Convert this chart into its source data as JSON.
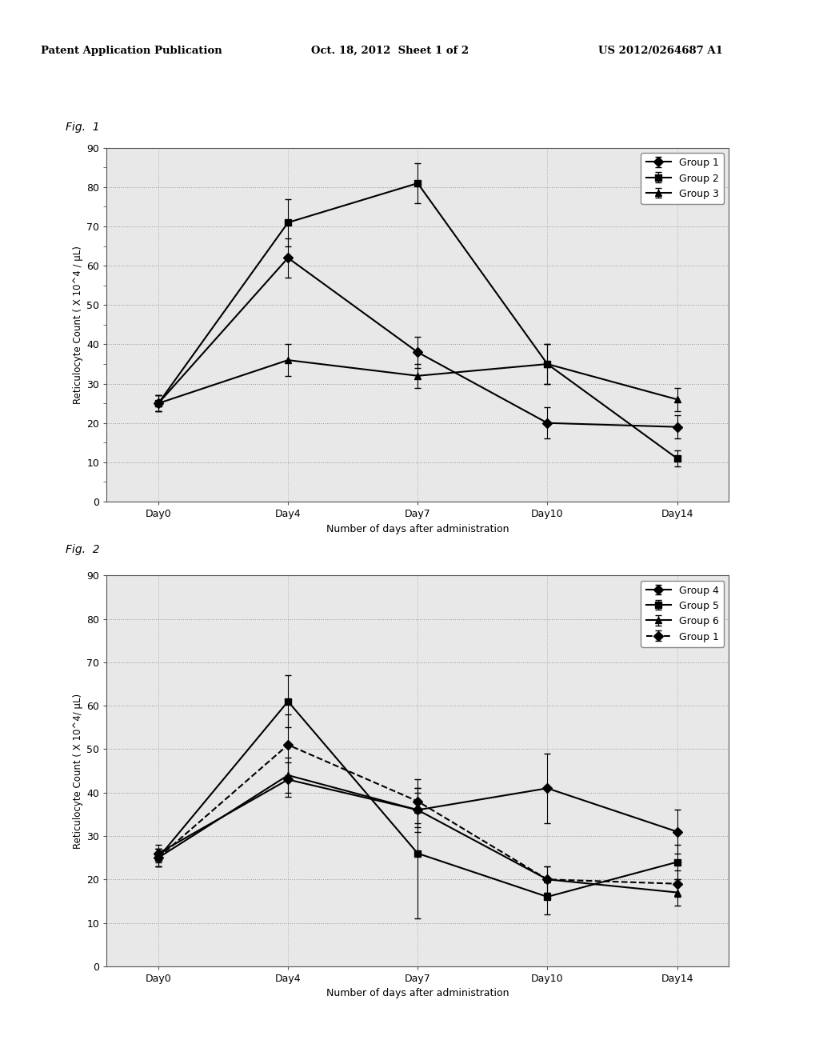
{
  "fig1_title": "Fig.  1",
  "fig2_title": "Fig.  2",
  "header_left": "Patent Application Publication",
  "header_mid": "Oct. 18, 2012  Sheet 1 of 2",
  "header_right": "US 2012/0264687 A1",
  "x_labels": [
    "Day0",
    "Day4",
    "Day7",
    "Day10",
    "Day14"
  ],
  "ylabel1": "Reticulocyte Count ( X 10^4 / μL)",
  "ylabel2": "Reticulocyte Count ( X 10^4/ μL)",
  "xlabel": "Number of days after administration",
  "ylim": [
    0,
    90
  ],
  "yticks": [
    0,
    10,
    20,
    30,
    40,
    50,
    60,
    70,
    80,
    90
  ],
  "fig1_groups": [
    {
      "name": "Group 1",
      "values": [
        25,
        62,
        38,
        20,
        19
      ],
      "errors": [
        2,
        5,
        4,
        4,
        3
      ],
      "marker": "D",
      "linestyle": "-",
      "color": "#000000",
      "linewidth": 1.5,
      "markersize": 6
    },
    {
      "name": "Group 2",
      "values": [
        25,
        71,
        81,
        35,
        11
      ],
      "errors": [
        2,
        6,
        5,
        5,
        2
      ],
      "marker": "s",
      "linestyle": "-",
      "color": "#000000",
      "linewidth": 1.5,
      "markersize": 6
    },
    {
      "name": "Group 3",
      "values": [
        25,
        36,
        32,
        35,
        26
      ],
      "errors": [
        2,
        4,
        3,
        5,
        3
      ],
      "marker": "^",
      "linestyle": "-",
      "color": "#000000",
      "linewidth": 1.5,
      "markersize": 6
    }
  ],
  "fig2_groups": [
    {
      "name": "Group 4",
      "values": [
        26,
        43,
        36,
        41,
        31
      ],
      "errors": [
        2,
        4,
        5,
        8,
        5
      ],
      "marker": "D",
      "linestyle": "-",
      "color": "#000000",
      "linewidth": 1.5,
      "markersize": 6
    },
    {
      "name": "Group 5",
      "values": [
        25,
        61,
        26,
        16,
        24
      ],
      "errors": [
        2,
        6,
        15,
        4,
        4
      ],
      "marker": "s",
      "linestyle": "-",
      "color": "#000000",
      "linewidth": 1.5,
      "markersize": 6
    },
    {
      "name": "Group 6",
      "values": [
        25,
        44,
        36,
        20,
        17
      ],
      "errors": [
        2,
        4,
        4,
        3,
        3
      ],
      "marker": "^",
      "linestyle": "-",
      "color": "#000000",
      "linewidth": 1.5,
      "markersize": 6
    },
    {
      "name": "Group 1",
      "values": [
        25,
        51,
        38,
        20,
        19
      ],
      "errors": [
        2,
        7,
        5,
        3,
        3
      ],
      "marker": "D",
      "linestyle": "--",
      "color": "#000000",
      "linewidth": 1.5,
      "markersize": 6
    }
  ],
  "background_color": "#ffffff",
  "plot_bg": "#e8e8e8",
  "grid_color": "#999999"
}
